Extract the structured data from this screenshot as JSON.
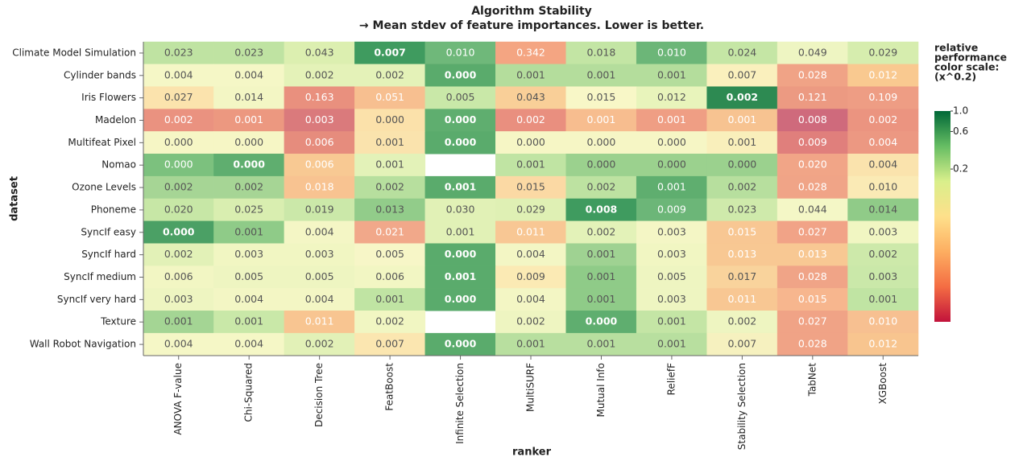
{
  "chart_data": {
    "type": "heatmap",
    "title": "Algorithm Stability",
    "subtitle": "→ Mean stdev of feature importances. Lower is better.",
    "x_label": "ranker",
    "y_label": "dataset",
    "columns": [
      "ANOVA F-value",
      "Chi-Squared",
      "Decision Tree",
      "FeatBoost",
      "Infinite Selection",
      "MultiSURF",
      "Mutual Info",
      "ReliefF",
      "Stability Selection",
      "TabNet",
      "XGBoost"
    ],
    "rows": [
      "Climate Model Simulation",
      "Cylinder bands",
      "Iris Flowers",
      "Madelon",
      "Multifeat Pixel",
      "Nomao",
      "Ozone Levels",
      "Phoneme",
      "SyncIf easy",
      "SyncIf hard",
      "SyncIf medium",
      "SyncIf very hard",
      "Texture",
      "Wall Robot Navigation"
    ],
    "values": [
      [
        0.023,
        0.023,
        0.043,
        0.007,
        0.01,
        0.342,
        0.018,
        0.01,
        0.024,
        0.049,
        0.029
      ],
      [
        0.004,
        0.004,
        0.002,
        0.002,
        0,
        0.001,
        0.001,
        0.001,
        0.007,
        0.028,
        0.012
      ],
      [
        0.027,
        0.014,
        0.163,
        0.051,
        0.005,
        0.043,
        0.015,
        0.012,
        0.002,
        0.121,
        0.109
      ],
      [
        0.002,
        0.001,
        0.003,
        0,
        0,
        0.002,
        0.001,
        0.001,
        0.001,
        0.008,
        0.002
      ],
      [
        0,
        0,
        0.006,
        0.001,
        0,
        0,
        0,
        0,
        0.001,
        0.009,
        0.004
      ],
      [
        0,
        0,
        0.006,
        0.001,
        null,
        0.001,
        0,
        0,
        0,
        0.02,
        0.004
      ],
      [
        0.002,
        0.002,
        0.018,
        0.002,
        0.001,
        0.015,
        0.002,
        0.001,
        0.002,
        0.028,
        0.01
      ],
      [
        0.02,
        0.025,
        0.019,
        0.013,
        0.03,
        0.029,
        0.008,
        0.009,
        0.023,
        0.044,
        0.014
      ],
      [
        0,
        0.001,
        0.004,
        0.021,
        0.001,
        0.011,
        0.002,
        0.003,
        0.015,
        0.027,
        0.003
      ],
      [
        0.002,
        0.003,
        0.003,
        0.005,
        0,
        0.004,
        0.001,
        0.003,
        0.013,
        0.013,
        0.002
      ],
      [
        0.006,
        0.005,
        0.005,
        0.006,
        0.001,
        0.009,
        0.001,
        0.005,
        0.017,
        0.028,
        0.003
      ],
      [
        0.003,
        0.004,
        0.004,
        0.001,
        0,
        0.004,
        0.001,
        0.003,
        0.011,
        0.015,
        0.001
      ],
      [
        0.001,
        0.001,
        0.011,
        0.002,
        null,
        0.002,
        0,
        0.001,
        0.002,
        0.027,
        0.01
      ],
      [
        0.004,
        0.004,
        0.002,
        0.007,
        0,
        0.001,
        0.001,
        0.001,
        0.007,
        0.028,
        0.012
      ]
    ],
    "value_labels": [
      [
        "0.023",
        "0.023",
        "0.043",
        "0.007",
        "0.010",
        "0.342",
        "0.018",
        "0.010",
        "0.024",
        "0.049",
        "0.029"
      ],
      [
        "0.004",
        "0.004",
        "0.002",
        "0.002",
        "0.000",
        "0.001",
        "0.001",
        "0.001",
        "0.007",
        "0.028",
        "0.012"
      ],
      [
        "0.027",
        "0.014",
        "0.163",
        "0.051",
        "0.005",
        "0.043",
        "0.015",
        "0.012",
        "0.002",
        "0.121",
        "0.109"
      ],
      [
        "0.002",
        "0.001",
        "0.003",
        "0.000",
        "0.000",
        "0.002",
        "0.001",
        "0.001",
        "0.001",
        "0.008",
        "0.002"
      ],
      [
        "0.000",
        "0.000",
        "0.006",
        "0.001",
        "0.000",
        "0.000",
        "0.000",
        "0.000",
        "0.001",
        "0.009",
        "0.004"
      ],
      [
        "0.000",
        "0.000",
        "0.006",
        "0.001",
        null,
        "0.001",
        "0.000",
        "0.000",
        "0.000",
        "0.020",
        "0.004"
      ],
      [
        "0.002",
        "0.002",
        "0.018",
        "0.002",
        "0.001",
        "0.015",
        "0.002",
        "0.001",
        "0.002",
        "0.028",
        "0.010"
      ],
      [
        "0.020",
        "0.025",
        "0.019",
        "0.013",
        "0.030",
        "0.029",
        "0.008",
        "0.009",
        "0.023",
        "0.044",
        "0.014"
      ],
      [
        "0.000",
        "0.001",
        "0.004",
        "0.021",
        "0.001",
        "0.011",
        "0.002",
        "0.003",
        "0.015",
        "0.027",
        "0.003"
      ],
      [
        "0.002",
        "0.003",
        "0.003",
        "0.005",
        "0.000",
        "0.004",
        "0.001",
        "0.003",
        "0.013",
        "0.013",
        "0.002"
      ],
      [
        "0.006",
        "0.005",
        "0.005",
        "0.006",
        "0.001",
        "0.009",
        "0.001",
        "0.005",
        "0.017",
        "0.028",
        "0.003"
      ],
      [
        "0.003",
        "0.004",
        "0.004",
        "0.001",
        "0.000",
        "0.004",
        "0.001",
        "0.003",
        "0.011",
        "0.015",
        "0.001"
      ],
      [
        "0.001",
        "0.001",
        "0.011",
        "0.002",
        null,
        "0.002",
        "0.000",
        "0.001",
        "0.002",
        "0.027",
        "0.010"
      ],
      [
        "0.004",
        "0.004",
        "0.002",
        "0.007",
        "0.000",
        "0.001",
        "0.001",
        "0.001",
        "0.007",
        "0.028",
        "0.012"
      ]
    ],
    "highlight": [
      3,
      4,
      8,
      4,
      4,
      1,
      4,
      6,
      0,
      4,
      4,
      4,
      6,
      4
    ],
    "colors": [
      [
        "#bfe3a2",
        "#bfe3a2",
        "#dcefb0",
        "#3f9b5f",
        "#6fb87a",
        "#f4a582",
        "#c3e5a4",
        "#6cb678",
        "#c5e6a5",
        "#eef5c2",
        "#d6edae"
      ],
      [
        "#f5f7c6",
        "#f5f7c6",
        "#e4f2b8",
        "#e4f2b8",
        "#5aab6c",
        "#b4dd9c",
        "#b4dd9c",
        "#b4dd9c",
        "#faf0bd",
        "#f0a386",
        "#f9c990"
      ],
      [
        "#fbe3ad",
        "#f3f6c4",
        "#e9907e",
        "#f7bf90",
        "#c9e8a8",
        "#f9cf98",
        "#f8f7c7",
        "#e8f4bb",
        "#2d8a52",
        "#ec9a82",
        "#ee9d84"
      ],
      [
        "#ea9280",
        "#ec9880",
        "#da7a7c",
        "#fbe1aa",
        "#5fae6f",
        "#e98f7f",
        "#f7bd8f",
        "#ef9e84",
        "#f7c391",
        "#cf6a7c",
        "#eb9480"
      ],
      [
        "#f6f6c5",
        "#f6f6c5",
        "#e68c7d",
        "#fae3ad",
        "#5aab6c",
        "#f6f6c5",
        "#f6f6c5",
        "#f6f6c5",
        "#f9efbb",
        "#e07f7c",
        "#ec9882"
      ],
      [
        "#7cc17e",
        "#5fae6f",
        "#f8c993",
        "#e3f2b8",
        null,
        "#c0e4a3",
        "#9bd18e",
        "#9bd18e",
        "#9bd18e",
        "#f1a587",
        "#fae3ad"
      ],
      [
        "#a6d595",
        "#a6d595",
        "#f8c391",
        "#b7df9e",
        "#5aab6c",
        "#fbd9a4",
        "#bde2a1",
        "#5fae6f",
        "#b7df9e",
        "#f0a487",
        "#faeab5"
      ],
      [
        "#c7e7a6",
        "#d9eeb0",
        "#cbe8a9",
        "#92cc8a",
        "#e1f1b6",
        "#dff0b4",
        "#3f9b5f",
        "#6cb678",
        "#cfeaab",
        "#f4f7c6",
        "#90cb88"
      ],
      [
        "#4ba065",
        "#8fcb88",
        "#f4f6c5",
        "#f1a88a",
        "#e1f1b6",
        "#f8c794",
        "#e3f2b8",
        "#f4f6c5",
        "#f8c793",
        "#f1a387",
        "#f1f6c2"
      ],
      [
        "#e2f1b7",
        "#f1f6c2",
        "#f1f6c2",
        "#f7f6c7",
        "#5aab6c",
        "#f3f6c4",
        "#9fd292",
        "#f1f6c2",
        "#f8c893",
        "#f8c893",
        "#cde9aa"
      ],
      [
        "#f2f6c3",
        "#eef5c1",
        "#eef5c1",
        "#f2f6c3",
        "#5aab6c",
        "#fbeab4",
        "#8fcb88",
        "#eef5c1",
        "#f9d39c",
        "#f0a487",
        "#cae8a9"
      ],
      [
        "#eef5c1",
        "#f3f6c4",
        "#f3f6c4",
        "#c0e4a3",
        "#5aab6c",
        "#f3f6c4",
        "#8fcb88",
        "#eef5c1",
        "#f8c793",
        "#f7b68e",
        "#c0e4a3"
      ],
      [
        "#a4d594",
        "#c9e8a8",
        "#f8c591",
        "#f1f6c2",
        null,
        "#eef5c1",
        "#5fae6f",
        "#c4e5a5",
        "#eef5c1",
        "#f0a386",
        "#f7c091"
      ],
      [
        "#f5f7c6",
        "#f5f7c6",
        "#e2f1b7",
        "#fbe6b0",
        "#5aab6c",
        "#b8df9f",
        "#b8df9f",
        "#b8df9f",
        "#f6f1bf",
        "#f0a386",
        "#f8c58f"
      ]
    ],
    "legend": {
      "title": [
        "relative",
        "performance",
        "color scale:",
        "(x^0.2)"
      ],
      "ylim": [
        0,
        1
      ],
      "exponent": 0.2,
      "ticks": [
        {
          "value": 1,
          "label": "1.0"
        },
        0.6,
        0.2
      ],
      "colorscale": [
        "#006837",
        "#66bd63",
        "#d9ef8b",
        "#fee08b",
        "#fdae61",
        "#f46d43",
        "#c2133b"
      ]
    }
  }
}
